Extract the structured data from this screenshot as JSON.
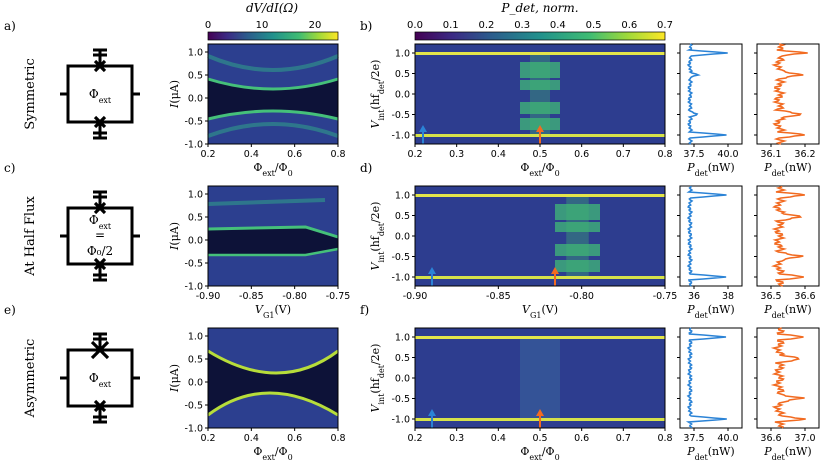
{
  "figure": {
    "rows": [
      {
        "id": "symmetric",
        "row_label": "Symmetric",
        "circuit_label": "Φext",
        "circuit_label2": "",
        "label_left": "a)",
        "label_right": "b)"
      },
      {
        "id": "half-flux",
        "row_label": "At Half Flux",
        "circuit_label": "Φext",
        "circuit_label2": "Φ₀/2",
        "circuit_eq": "=",
        "label_left": "c)",
        "label_right": "d)"
      },
      {
        "id": "asymmetric",
        "row_label": "Asymmetric",
        "circuit_label": "Φext",
        "circuit_label2": "",
        "label_left": "e)",
        "label_right": "f)"
      }
    ],
    "colorbar_left": {
      "label": "dV/dI(Ω)",
      "ticks": [
        "0",
        "10",
        "20"
      ]
    },
    "colorbar_right": {
      "label": "P_det, norm.",
      "ticks": [
        "0.0",
        "0.1",
        "0.2",
        "0.3",
        "0.4",
        "0.5",
        "0.6",
        "0.7"
      ]
    },
    "axes": {
      "ylabel_left": "I(μA)",
      "ylabel_right": "V_int(hf_det/2e)",
      "yticks_left": [
        "0.0",
        "-0.5",
        "-1.0"
      ],
      "yticks_left_top": "1.0",
      "yticks_left_mid": "0.5",
      "yticks_right": [
        "1.0",
        "0.5",
        "0.0",
        "-0.5",
        "-1.0"
      ],
      "xlabel_flux": "Φext/Φ0",
      "xlabel_gate": "VG1(V)",
      "xticks_flux_left": [
        "0.2",
        "0.4",
        "0.6",
        "0.8"
      ],
      "xticks_flux_right": [
        "0.2",
        "0.3",
        "0.4",
        "0.5",
        "0.6",
        "0.7",
        "0.8"
      ],
      "xticks_gate_left": [
        "-0.90",
        "-0.85",
        "-0.80",
        "-0.75"
      ],
      "xticks_gate_right": [
        "-0.90",
        "-0.85",
        "-0.80",
        "-0.75"
      ]
    },
    "side_plots": [
      {
        "blue_ticks": [
          "37.5",
          "40.0"
        ],
        "orange_ticks": [
          "36.1",
          "36.2"
        ],
        "xlabel": "P_det(nW)"
      },
      {
        "blue_ticks": [
          "36",
          "38"
        ],
        "orange_ticks": [
          "36.5",
          "36.6"
        ],
        "xlabel": "P_det(nW)"
      },
      {
        "blue_ticks": [
          "37.5",
          "40.0"
        ],
        "orange_ticks": [
          "36.6",
          "37.0"
        ],
        "xlabel": "P_det(nW)"
      }
    ],
    "colors": {
      "blue": "#2b83d6",
      "orange": "#f26b21",
      "map_bg": "#2b3c8e",
      "map_dark": "#1a1a3a",
      "map_green": "#3fbf6f",
      "map_yellow": "#e8e940"
    }
  }
}
